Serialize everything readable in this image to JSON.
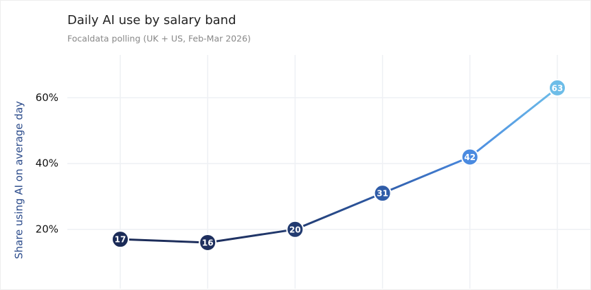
{
  "chart_data": {
    "type": "line",
    "title": "Daily AI use by salary band",
    "subtitle": "Focaldata polling (UK + US, Feb-Mar 2026)",
    "y_label": "Share using AI on average day",
    "categories": [
      null,
      null,
      null,
      null,
      null,
      null
    ],
    "values": [
      17,
      16,
      20,
      31,
      42,
      63
    ],
    "colors": [
      "#1b2b57",
      "#1e2f5e",
      "#223b70",
      "#2f5ca8",
      "#4a8ae0",
      "#6dbde8"
    ],
    "ylim": [
      2,
      73
    ],
    "yticks": [
      {
        "value": 20,
        "label": "20%"
      },
      {
        "value": 40,
        "label": "40%"
      },
      {
        "value": 60,
        "label": "60%"
      }
    ],
    "grid": true
  }
}
